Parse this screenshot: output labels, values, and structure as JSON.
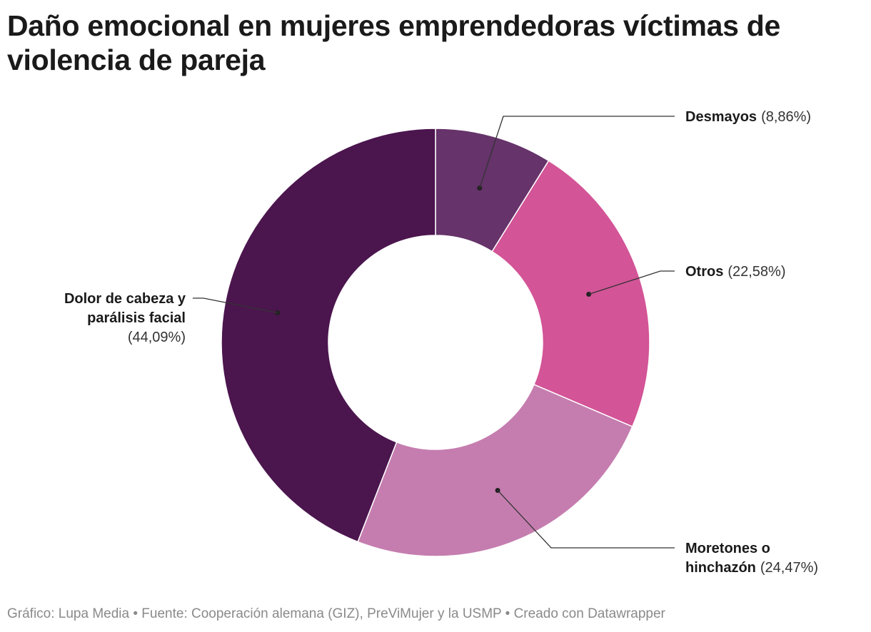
{
  "title": "Daño emocional en mujeres emprendedoras víctimas de violencia de pareja",
  "footer": "Gráfico: Lupa Media • Fuente: Cooperación alemana (GIZ), PreViMujer y la USMP • Creado con Datawrapper",
  "chart_data": {
    "type": "pie",
    "variant": "donut",
    "title": "Daño emocional en mujeres emprendedoras víctimas de violencia de pareja",
    "slices": [
      {
        "label": "Desmayos",
        "label_lines": [
          "Desmayos"
        ],
        "value": 8.86,
        "value_text": "(8,86%)",
        "color": "#66336a"
      },
      {
        "label": "Otros",
        "label_lines": [
          "Otros"
        ],
        "value": 22.58,
        "value_text": "(22,58%)",
        "color": "#d35497"
      },
      {
        "label": "Moretones o hinchazón",
        "label_lines": [
          "Moretones o",
          "hinchazón"
        ],
        "value": 24.47,
        "value_text": "(24,47%)",
        "color": "#c57daf"
      },
      {
        "label": "Dolor de cabeza y parálisis facial",
        "label_lines": [
          "Dolor de cabeza y",
          "parálisis facial"
        ],
        "value": 44.09,
        "value_text": "(44,09%)",
        "color": "#4b154e"
      }
    ]
  }
}
